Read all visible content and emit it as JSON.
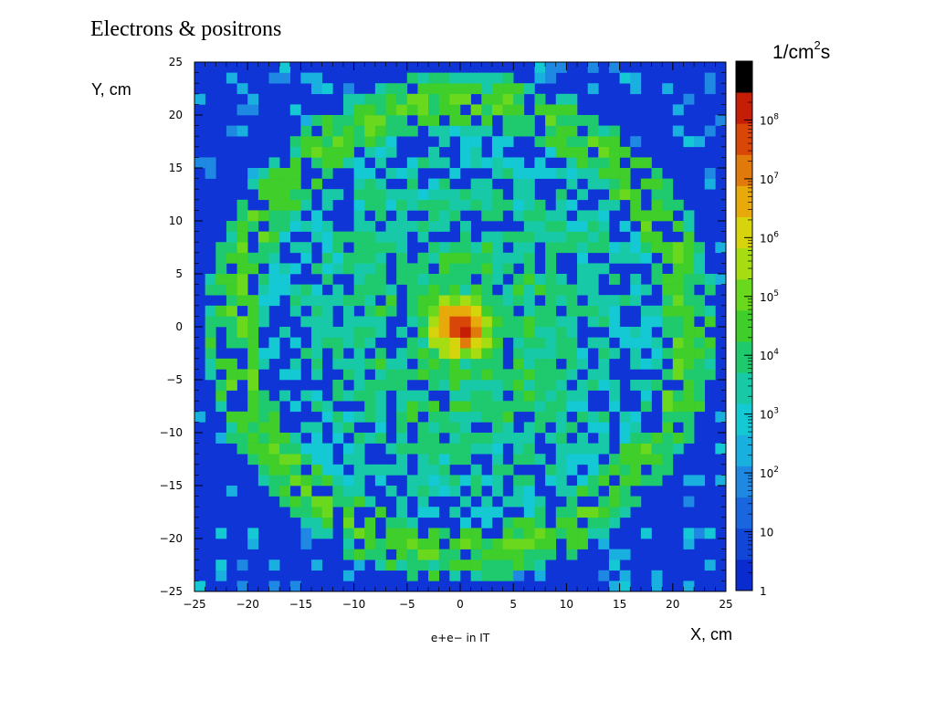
{
  "figure": {
    "title": "Electrons & positrons",
    "units_base": "1/cm",
    "units_exp": "2",
    "units_suffix": "s",
    "y_axis_text": "Y, cm",
    "x_axis_text": "X, cm"
  },
  "chart_data": {
    "type": "heatmap",
    "title": "e+e− in IT",
    "xlabel": "X, cm",
    "ylabel": "Y, cm",
    "xlim": [
      -25,
      25
    ],
    "ylim": [
      -25,
      25
    ],
    "x_ticks": [
      -25,
      -20,
      -15,
      -10,
      -5,
      0,
      5,
      10,
      15,
      20,
      25
    ],
    "y_ticks": [
      -25,
      -20,
      -15,
      -10,
      -5,
      0,
      5,
      10,
      15,
      20,
      25
    ],
    "x_tick_labels": [
      "−25",
      "−20",
      "−15",
      "−10",
      "−5",
      "0",
      "5",
      "10",
      "15",
      "20",
      "25"
    ],
    "y_tick_labels": [
      "−25",
      "−20",
      "−15",
      "−10",
      "−5",
      "0",
      "5",
      "10",
      "15",
      "20",
      "25"
    ],
    "bins": {
      "nx": 50,
      "ny": 50,
      "bin_width_cm": 1
    },
    "z_scale": "log",
    "z_range": [
      1,
      1000000000
    ],
    "colorbar_ticks": [
      1,
      10,
      100,
      1000,
      10000,
      100000,
      1000000,
      10000000,
      100000000
    ],
    "colorbar_tick_labels": [
      {
        "base": "1",
        "exp": ""
      },
      {
        "base": "10",
        "exp": ""
      },
      {
        "base": "10",
        "exp": "2"
      },
      {
        "base": "10",
        "exp": "3"
      },
      {
        "base": "10",
        "exp": "4"
      },
      {
        "base": "10",
        "exp": "5"
      },
      {
        "base": "10",
        "exp": "6"
      },
      {
        "base": "10",
        "exp": "7"
      },
      {
        "base": "10",
        "exp": "8"
      }
    ],
    "colorbar_units": "1/cm²s",
    "background_color": "#0f35d6",
    "palette": [
      "#0a2ccf",
      "#1246d6",
      "#1a66de",
      "#1f88e2",
      "#19b0e0",
      "#15c9d4",
      "#18c9a8",
      "#1fca6e",
      "#3fce2a",
      "#6ad91e",
      "#a6dc12",
      "#d6d40c",
      "#e8aa0a",
      "#e07a0a",
      "#d84608",
      "#c41e06",
      "#000000"
    ],
    "structure": {
      "hotspot_center": [
        0,
        0
      ],
      "hotspot_peak_flux": 1000000000,
      "ring_radius_cm": 21,
      "ring_peak_flux": 50000
    }
  }
}
